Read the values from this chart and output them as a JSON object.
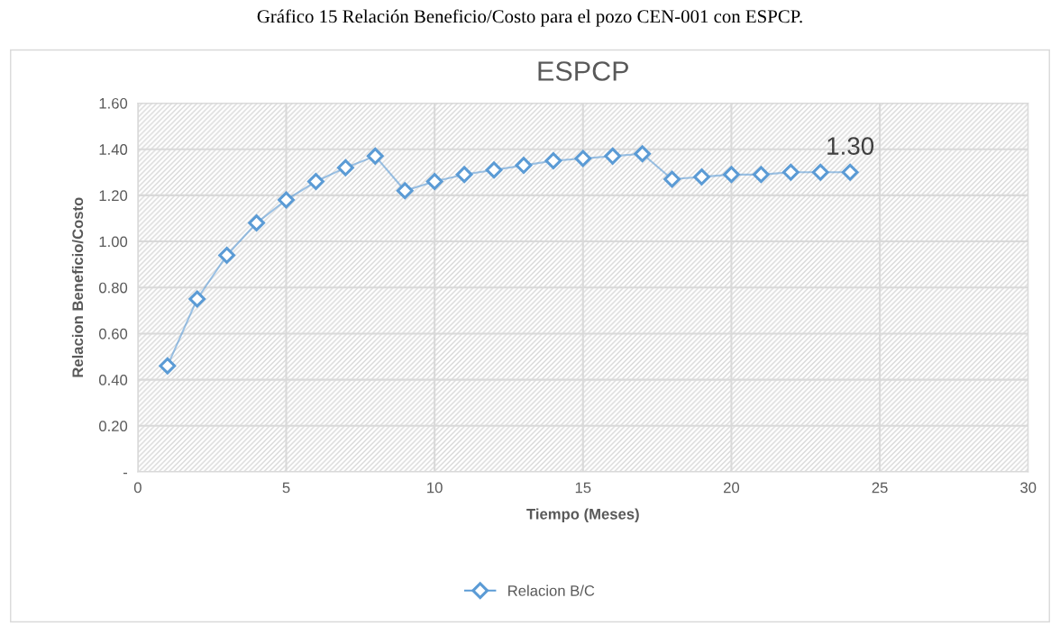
{
  "chart_data": {
    "type": "line",
    "title": "ESPCP",
    "xlabel": "Tiempo (Meses)",
    "ylabel": "Relacion Beneficio/Costo",
    "annotations": [
      "Gráfico 15 Relación Beneficio/Costo para el pozo CEN-001 con ESPCP."
    ],
    "x": [
      1,
      2,
      3,
      4,
      5,
      6,
      7,
      8,
      9,
      10,
      11,
      12,
      13,
      14,
      15,
      16,
      17,
      18,
      19,
      20,
      21,
      22,
      23,
      24
    ],
    "series": [
      {
        "name": "Relacion B/C",
        "color": "#5b9bd5",
        "values": [
          0.46,
          0.75,
          0.94,
          1.08,
          1.18,
          1.26,
          1.32,
          1.37,
          1.22,
          1.26,
          1.29,
          1.31,
          1.33,
          1.35,
          1.36,
          1.37,
          1.38,
          1.27,
          1.28,
          1.29,
          1.29,
          1.3,
          1.3,
          1.3
        ],
        "value_labels": [
          null,
          null,
          null,
          null,
          null,
          null,
          null,
          null,
          null,
          null,
          null,
          null,
          null,
          null,
          null,
          null,
          null,
          null,
          null,
          null,
          null,
          null,
          null,
          "1.30"
        ]
      }
    ],
    "xlim": [
      0,
      30
    ],
    "xticks": [
      0,
      5,
      10,
      15,
      20,
      25,
      30
    ],
    "ylim": [
      0,
      1.6
    ],
    "yticks": [
      {
        "value": 0,
        "label": "-"
      },
      {
        "value": 0.2,
        "label": "0.20"
      },
      {
        "value": 0.4,
        "label": "0.40"
      },
      {
        "value": 0.6,
        "label": "0.60"
      },
      {
        "value": 0.8,
        "label": "0.80"
      },
      {
        "value": 1.0,
        "label": "1.00"
      },
      {
        "value": 1.2,
        "label": "1.20"
      },
      {
        "value": 1.4,
        "label": "1.40"
      },
      {
        "value": 1.6,
        "label": "1.60"
      }
    ],
    "grid": true,
    "legend": "bottom",
    "marker": "diamond",
    "line_style": "solid"
  }
}
